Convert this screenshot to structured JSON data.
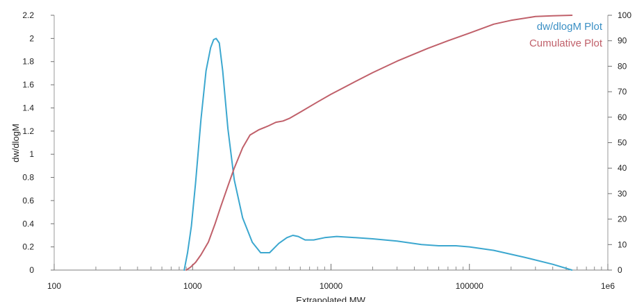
{
  "chart_data": {
    "type": "line",
    "title": "",
    "xlabel": "Extrapolated MW",
    "ylabel": "dw/dlogM",
    "y2label": "",
    "x_scale": "log",
    "xlim": [
      100,
      1000000
    ],
    "ylim": [
      0,
      2.2
    ],
    "y2lim": [
      0,
      100
    ],
    "x_ticks": [
      100,
      1000,
      10000,
      100000,
      1000000
    ],
    "x_tick_labels": [
      "100",
      "1000",
      "10000",
      "100000",
      "1e6"
    ],
    "y_ticks": [
      0,
      0.2,
      0.4,
      0.6,
      0.8,
      1,
      1.2,
      1.4,
      1.6,
      1.8,
      2,
      2.2
    ],
    "y_tick_labels": [
      "0",
      "0.2",
      "0.4",
      "0.6",
      "0.8",
      "1",
      "1.2",
      "1.4",
      "1.6",
      "1.8",
      "2",
      "2.2"
    ],
    "y2_ticks": [
      0,
      10,
      20,
      30,
      40,
      50,
      60,
      70,
      80,
      90,
      100
    ],
    "y2_tick_labels": [
      "0",
      "10",
      "20",
      "30",
      "40",
      "50",
      "60",
      "70",
      "80",
      "90",
      "100"
    ],
    "grid": false,
    "legend_position": "top-right",
    "series": [
      {
        "name": "dw/dlogM Plot",
        "axis": "left",
        "color": "#3ba7cf",
        "x": [
          870,
          920,
          980,
          1050,
          1150,
          1250,
          1350,
          1420,
          1480,
          1560,
          1650,
          1800,
          2000,
          2300,
          2700,
          3100,
          3600,
          4200,
          4800,
          5300,
          5800,
          6500,
          7500,
          9000,
          11000,
          15000,
          20000,
          30000,
          45000,
          60000,
          80000,
          100000,
          150000,
          250000,
          400000,
          550000
        ],
        "y": [
          0,
          0.15,
          0.38,
          0.75,
          1.3,
          1.72,
          1.92,
          1.99,
          2.0,
          1.96,
          1.72,
          1.22,
          0.78,
          0.45,
          0.24,
          0.15,
          0.15,
          0.23,
          0.28,
          0.3,
          0.29,
          0.26,
          0.26,
          0.28,
          0.29,
          0.28,
          0.27,
          0.25,
          0.22,
          0.21,
          0.21,
          0.2,
          0.17,
          0.11,
          0.05,
          0
        ]
      },
      {
        "name": "Cumulative Plot",
        "axis": "right",
        "color": "#c0606a",
        "x": [
          900,
          960,
          1050,
          1150,
          1300,
          1450,
          1600,
          1800,
          2000,
          2300,
          2600,
          3000,
          3500,
          4000,
          4500,
          5000,
          6000,
          8000,
          10000,
          15000,
          20000,
          30000,
          50000,
          70000,
          100000,
          150000,
          200000,
          300000,
          400000,
          550000
        ],
        "y": [
          0,
          1,
          3,
          6,
          11,
          18,
          25,
          33,
          40,
          48,
          53,
          55,
          56.5,
          58,
          58.5,
          59.5,
          62,
          66,
          69,
          74,
          77.5,
          82,
          87,
          90,
          93,
          96.5,
          98,
          99.5,
          99.8,
          100
        ]
      }
    ]
  }
}
